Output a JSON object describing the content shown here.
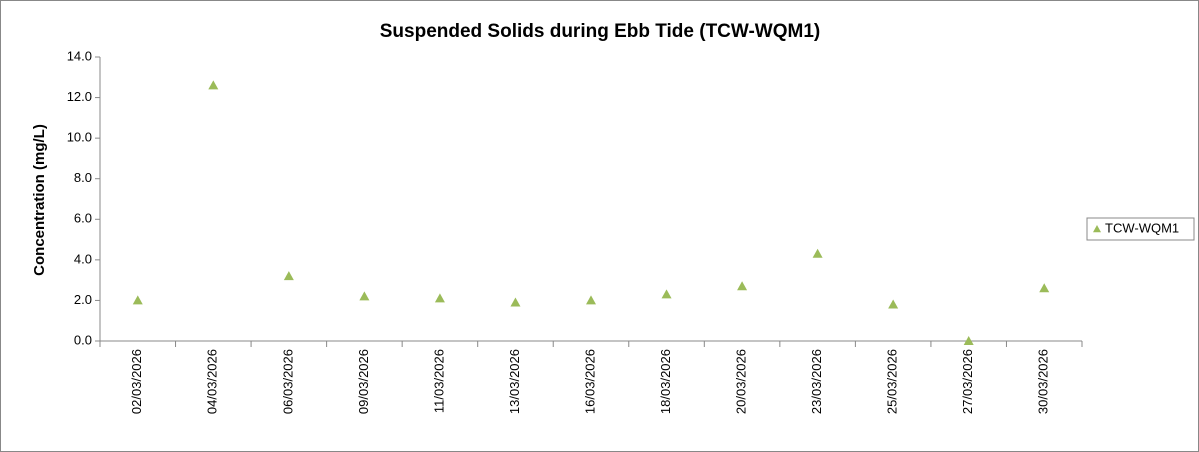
{
  "chart_data": {
    "type": "scatter",
    "title": "Suspended Solids during Ebb Tide (TCW-WQM1)",
    "y_label": "Concentration (mg/L)",
    "categories": [
      "02/03/2026",
      "04/03/2026",
      "06/03/2026",
      "09/03/2026",
      "11/03/2026",
      "13/03/2026",
      "16/03/2026",
      "18/03/2026",
      "20/03/2026",
      "23/03/2026",
      "25/03/2026",
      "27/03/2026",
      "30/03/2026"
    ],
    "series": [
      {
        "name": "TCW-WQM1",
        "color": "#9bbb59",
        "values": [
          2.0,
          12.6,
          3.2,
          2.2,
          2.1,
          1.9,
          2.0,
          2.3,
          2.7,
          4.3,
          1.8,
          0.0,
          2.6
        ]
      }
    ],
    "ylim": [
      0,
      14
    ],
    "yticks": [
      {
        "value": 0,
        "label": "0.0"
      },
      {
        "value": 2,
        "label": "2.0"
      },
      {
        "value": 4,
        "label": "4.0"
      },
      {
        "value": 6,
        "label": "6.0"
      },
      {
        "value": 8,
        "label": "8.0"
      },
      {
        "value": 10,
        "label": "10.0"
      },
      {
        "value": 12,
        "label": "12.0"
      },
      {
        "value": 14,
        "label": "14.0"
      }
    ],
    "grid": false,
    "legend": "right"
  }
}
